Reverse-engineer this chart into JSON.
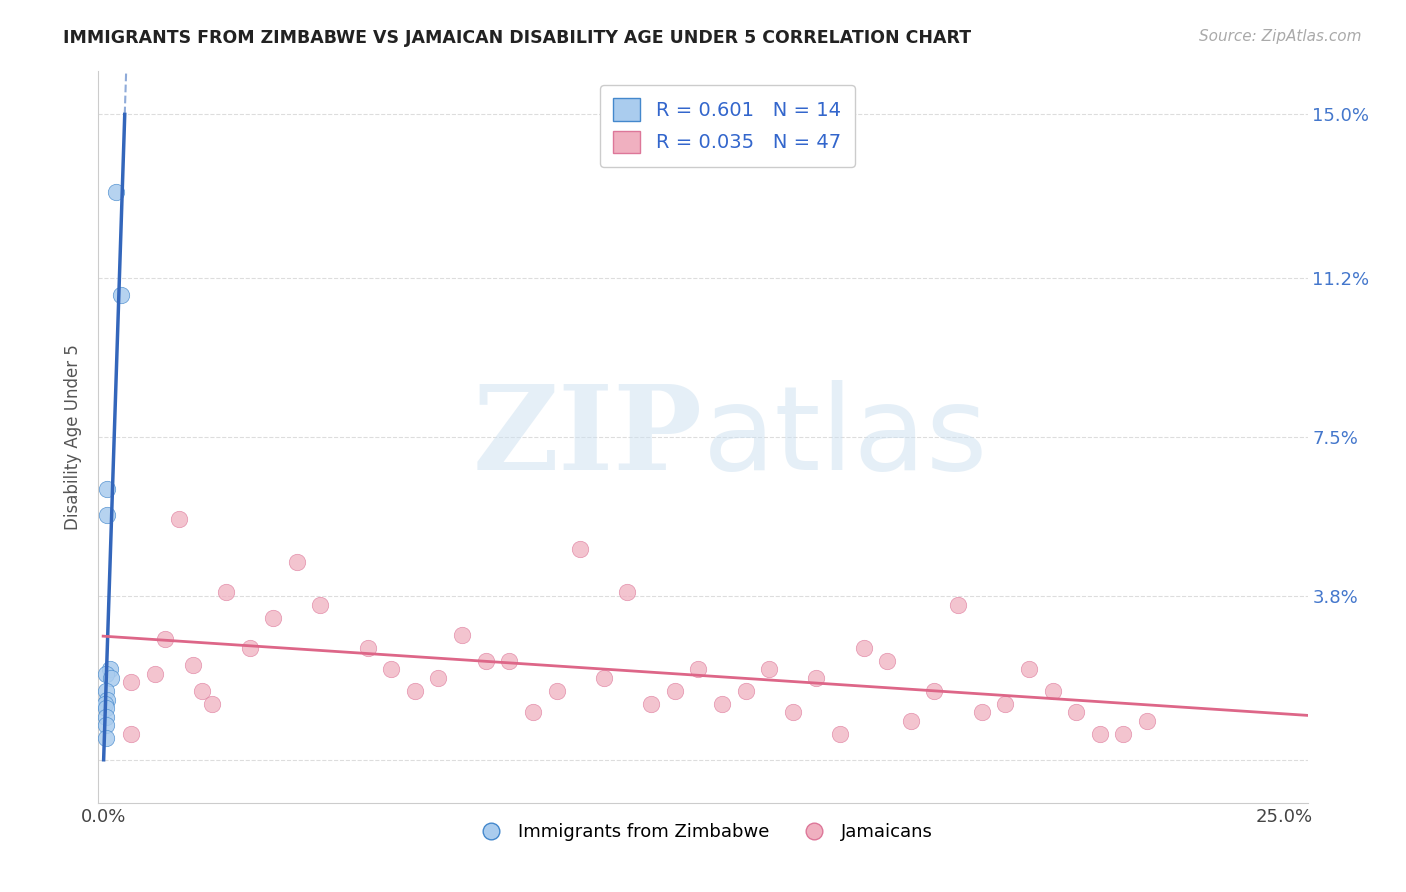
{
  "title": "IMMIGRANTS FROM ZIMBABWE VS JAMAICAN DISABILITY AGE UNDER 5 CORRELATION CHART",
  "source": "Source: ZipAtlas.com",
  "ylabel": "Disability Age Under 5",
  "xlim": [
    -0.001,
    0.255
  ],
  "ylim": [
    -0.01,
    0.16
  ],
  "ytick_vals": [
    0.0,
    0.038,
    0.075,
    0.112,
    0.15
  ],
  "ytick_labels": [
    "",
    "3.8%",
    "7.5%",
    "11.2%",
    "15.0%"
  ],
  "xtick_vals": [
    0.0,
    0.25
  ],
  "xtick_labels": [
    "0.0%",
    "25.0%"
  ],
  "bg_color": "#ffffff",
  "grid_color": "#dddddd",
  "blue_R": 0.601,
  "blue_N": 14,
  "pink_R": 0.035,
  "pink_N": 47,
  "blue_fill": "#aaccee",
  "blue_edge": "#4488cc",
  "pink_fill": "#f0b0c0",
  "pink_edge": "#dd7799",
  "blue_line": "#3366bb",
  "pink_line": "#dd6688",
  "blue_x": [
    0.0028,
    0.0038,
    0.0008,
    0.0009,
    0.0015,
    0.0007,
    0.0016,
    0.0006,
    0.0008,
    0.0004,
    0.0006,
    0.0007,
    0.0006,
    0.0005
  ],
  "blue_y": [
    0.132,
    0.108,
    0.063,
    0.057,
    0.021,
    0.02,
    0.019,
    0.016,
    0.014,
    0.013,
    0.012,
    0.01,
    0.008,
    0.005
  ],
  "pink_x": [
    0.011,
    0.021,
    0.016,
    0.041,
    0.026,
    0.006,
    0.031,
    0.036,
    0.019,
    0.023,
    0.013,
    0.046,
    0.061,
    0.056,
    0.081,
    0.071,
    0.066,
    0.091,
    0.101,
    0.111,
    0.121,
    0.131,
    0.141,
    0.151,
    0.161,
    0.171,
    0.181,
    0.191,
    0.201,
    0.211,
    0.086,
    0.076,
    0.096,
    0.106,
    0.116,
    0.126,
    0.136,
    0.146,
    0.156,
    0.166,
    0.176,
    0.186,
    0.196,
    0.206,
    0.216,
    0.221,
    0.006
  ],
  "pink_y": [
    0.02,
    0.016,
    0.056,
    0.046,
    0.039,
    0.018,
    0.026,
    0.033,
    0.022,
    0.013,
    0.028,
    0.036,
    0.021,
    0.026,
    0.023,
    0.019,
    0.016,
    0.011,
    0.049,
    0.039,
    0.016,
    0.013,
    0.021,
    0.019,
    0.026,
    0.009,
    0.036,
    0.013,
    0.016,
    0.006,
    0.023,
    0.029,
    0.016,
    0.019,
    0.013,
    0.021,
    0.016,
    0.011,
    0.006,
    0.023,
    0.016,
    0.011,
    0.021,
    0.011,
    0.006,
    0.009,
    0.006
  ]
}
